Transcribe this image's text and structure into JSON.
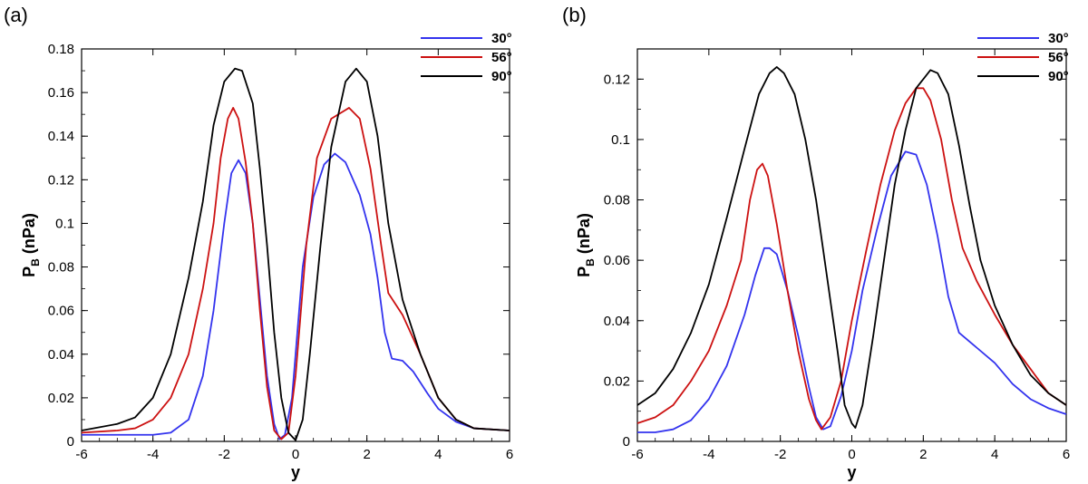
{
  "chart_data": [
    {
      "type": "line",
      "panel_label": "(a)",
      "xlabel": "y",
      "ylabel_main": "P",
      "ylabel_sub": "B",
      "ylabel_unit": " (nPa)",
      "xlim": [
        -6,
        6
      ],
      "ylim": [
        0,
        0.18
      ],
      "xticks": [
        -6,
        -4,
        -2,
        0,
        2,
        4,
        6
      ],
      "yticks": [
        0,
        0.02,
        0.04,
        0.06,
        0.08,
        0.1,
        0.12,
        0.14,
        0.16,
        0.18
      ],
      "ytick_labels": [
        "0",
        "0.02",
        "0.04",
        "0.06",
        "0.08",
        "0.1",
        "0.12",
        "0.14",
        "0.16",
        "0.18"
      ],
      "legend_position": "top-right",
      "series": [
        {
          "name": "30°",
          "color": "#3333ee",
          "points": [
            [
              -6,
              0.003
            ],
            [
              -5,
              0.003
            ],
            [
              -4,
              0.003
            ],
            [
              -3.5,
              0.004
            ],
            [
              -3,
              0.01
            ],
            [
              -2.6,
              0.03
            ],
            [
              -2.3,
              0.06
            ],
            [
              -2,
              0.1
            ],
            [
              -1.8,
              0.123
            ],
            [
              -1.6,
              0.129
            ],
            [
              -1.4,
              0.123
            ],
            [
              -1.2,
              0.1
            ],
            [
              -1,
              0.065
            ],
            [
              -0.8,
              0.03
            ],
            [
              -0.6,
              0.008
            ],
            [
              -0.45,
              0.001
            ],
            [
              -0.3,
              0.003
            ],
            [
              -0.1,
              0.02
            ],
            [
              0,
              0.04
            ],
            [
              0.2,
              0.08
            ],
            [
              0.5,
              0.112
            ],
            [
              0.8,
              0.127
            ],
            [
              1.1,
              0.132
            ],
            [
              1.4,
              0.128
            ],
            [
              1.8,
              0.113
            ],
            [
              2.1,
              0.095
            ],
            [
              2.3,
              0.075
            ],
            [
              2.5,
              0.05
            ],
            [
              2.7,
              0.038
            ],
            [
              3,
              0.037
            ],
            [
              3.3,
              0.032
            ],
            [
              3.7,
              0.022
            ],
            [
              4,
              0.015
            ],
            [
              4.5,
              0.009
            ],
            [
              5,
              0.006
            ],
            [
              6,
              0.005
            ]
          ]
        },
        {
          "name": "56°",
          "color": "#cc1111",
          "points": [
            [
              -6,
              0.004
            ],
            [
              -5,
              0.005
            ],
            [
              -4.5,
              0.006
            ],
            [
              -4,
              0.01
            ],
            [
              -3.5,
              0.02
            ],
            [
              -3,
              0.04
            ],
            [
              -2.6,
              0.07
            ],
            [
              -2.3,
              0.1
            ],
            [
              -2.1,
              0.13
            ],
            [
              -1.9,
              0.148
            ],
            [
              -1.75,
              0.153
            ],
            [
              -1.6,
              0.148
            ],
            [
              -1.4,
              0.128
            ],
            [
              -1.2,
              0.1
            ],
            [
              -1,
              0.06
            ],
            [
              -0.8,
              0.025
            ],
            [
              -0.6,
              0.005
            ],
            [
              -0.4,
              0.001
            ],
            [
              -0.2,
              0.004
            ],
            [
              0,
              0.03
            ],
            [
              0.3,
              0.09
            ],
            [
              0.6,
              0.13
            ],
            [
              1,
              0.148
            ],
            [
              1.5,
              0.153
            ],
            [
              1.8,
              0.148
            ],
            [
              2.1,
              0.125
            ],
            [
              2.4,
              0.09
            ],
            [
              2.6,
              0.068
            ],
            [
              3,
              0.058
            ],
            [
              3.5,
              0.04
            ],
            [
              4,
              0.02
            ],
            [
              4.5,
              0.01
            ],
            [
              5,
              0.006
            ],
            [
              6,
              0.005
            ]
          ]
        },
        {
          "name": "90°",
          "color": "#000000",
          "points": [
            [
              -6,
              0.005
            ],
            [
              -5,
              0.008
            ],
            [
              -4.5,
              0.011
            ],
            [
              -4,
              0.02
            ],
            [
              -3.5,
              0.04
            ],
            [
              -3,
              0.075
            ],
            [
              -2.6,
              0.11
            ],
            [
              -2.3,
              0.145
            ],
            [
              -2,
              0.165
            ],
            [
              -1.7,
              0.171
            ],
            [
              -1.5,
              0.17
            ],
            [
              -1.2,
              0.155
            ],
            [
              -1,
              0.125
            ],
            [
              -0.8,
              0.09
            ],
            [
              -0.6,
              0.05
            ],
            [
              -0.4,
              0.02
            ],
            [
              -0.2,
              0.004
            ],
            [
              0,
              0.0005
            ],
            [
              0.2,
              0.01
            ],
            [
              0.4,
              0.04
            ],
            [
              0.7,
              0.09
            ],
            [
              1,
              0.135
            ],
            [
              1.4,
              0.165
            ],
            [
              1.7,
              0.171
            ],
            [
              2,
              0.165
            ],
            [
              2.3,
              0.14
            ],
            [
              2.6,
              0.1
            ],
            [
              3,
              0.065
            ],
            [
              3.5,
              0.04
            ],
            [
              4,
              0.02
            ],
            [
              4.5,
              0.01
            ],
            [
              5,
              0.006
            ],
            [
              6,
              0.005
            ]
          ]
        }
      ]
    },
    {
      "type": "line",
      "panel_label": "(b)",
      "xlabel": "y",
      "ylabel_main": "P",
      "ylabel_sub": "B",
      "ylabel_unit": " (nPa)",
      "xlim": [
        -6,
        6
      ],
      "ylim": [
        0,
        0.13
      ],
      "xticks": [
        -6,
        -4,
        -2,
        0,
        2,
        4,
        6
      ],
      "yticks": [
        0,
        0.02,
        0.04,
        0.06,
        0.08,
        0.1,
        0.12
      ],
      "ytick_labels": [
        "0",
        "0.02",
        "0.04",
        "0.06",
        "0.08",
        "0.1",
        "0.12"
      ],
      "legend_position": "top-right",
      "series": [
        {
          "name": "30°",
          "color": "#3333ee",
          "points": [
            [
              -6,
              0.003
            ],
            [
              -5.5,
              0.003
            ],
            [
              -5,
              0.004
            ],
            [
              -4.5,
              0.007
            ],
            [
              -4,
              0.014
            ],
            [
              -3.5,
              0.025
            ],
            [
              -3,
              0.042
            ],
            [
              -2.7,
              0.055
            ],
            [
              -2.45,
              0.064
            ],
            [
              -2.3,
              0.064
            ],
            [
              -2.1,
              0.062
            ],
            [
              -1.8,
              0.05
            ],
            [
              -1.5,
              0.035
            ],
            [
              -1.2,
              0.018
            ],
            [
              -1,
              0.008
            ],
            [
              -0.8,
              0.004
            ],
            [
              -0.6,
              0.005
            ],
            [
              -0.3,
              0.015
            ],
            [
              0,
              0.03
            ],
            [
              0.3,
              0.05
            ],
            [
              0.7,
              0.07
            ],
            [
              1.1,
              0.088
            ],
            [
              1.5,
              0.096
            ],
            [
              1.8,
              0.095
            ],
            [
              2.1,
              0.085
            ],
            [
              2.4,
              0.068
            ],
            [
              2.7,
              0.048
            ],
            [
              3,
              0.036
            ],
            [
              3.5,
              0.031
            ],
            [
              4,
              0.026
            ],
            [
              4.5,
              0.019
            ],
            [
              5,
              0.014
            ],
            [
              5.5,
              0.011
            ],
            [
              6,
              0.009
            ]
          ]
        },
        {
          "name": "56°",
          "color": "#cc1111",
          "points": [
            [
              -6,
              0.006
            ],
            [
              -5.5,
              0.008
            ],
            [
              -5,
              0.012
            ],
            [
              -4.5,
              0.02
            ],
            [
              -4,
              0.03
            ],
            [
              -3.5,
              0.045
            ],
            [
              -3.1,
              0.06
            ],
            [
              -2.85,
              0.08
            ],
            [
              -2.65,
              0.09
            ],
            [
              -2.5,
              0.092
            ],
            [
              -2.35,
              0.088
            ],
            [
              -2.1,
              0.072
            ],
            [
              -1.8,
              0.05
            ],
            [
              -1.5,
              0.03
            ],
            [
              -1.2,
              0.014
            ],
            [
              -1,
              0.007
            ],
            [
              -0.85,
              0.004
            ],
            [
              -0.6,
              0.008
            ],
            [
              -0.3,
              0.02
            ],
            [
              0,
              0.04
            ],
            [
              0.4,
              0.063
            ],
            [
              0.8,
              0.085
            ],
            [
              1.2,
              0.103
            ],
            [
              1.5,
              0.112
            ],
            [
              1.8,
              0.117
            ],
            [
              2,
              0.117
            ],
            [
              2.2,
              0.113
            ],
            [
              2.5,
              0.1
            ],
            [
              2.8,
              0.08
            ],
            [
              3.1,
              0.064
            ],
            [
              3.5,
              0.053
            ],
            [
              4,
              0.042
            ],
            [
              4.5,
              0.032
            ],
            [
              5,
              0.024
            ],
            [
              5.5,
              0.016
            ],
            [
              6,
              0.012
            ]
          ]
        },
        {
          "name": "90°",
          "color": "#000000",
          "points": [
            [
              -6,
              0.012
            ],
            [
              -5.5,
              0.016
            ],
            [
              -5,
              0.024
            ],
            [
              -4.5,
              0.036
            ],
            [
              -4,
              0.052
            ],
            [
              -3.5,
              0.074
            ],
            [
              -3,
              0.097
            ],
            [
              -2.6,
              0.115
            ],
            [
              -2.3,
              0.122
            ],
            [
              -2.1,
              0.124
            ],
            [
              -1.9,
              0.122
            ],
            [
              -1.6,
              0.115
            ],
            [
              -1.3,
              0.1
            ],
            [
              -1,
              0.08
            ],
            [
              -0.7,
              0.055
            ],
            [
              -0.4,
              0.03
            ],
            [
              -0.2,
              0.012
            ],
            [
              0,
              0.006
            ],
            [
              0.1,
              0.0045
            ],
            [
              0.3,
              0.012
            ],
            [
              0.6,
              0.035
            ],
            [
              0.9,
              0.06
            ],
            [
              1.2,
              0.085
            ],
            [
              1.5,
              0.103
            ],
            [
              1.8,
              0.117
            ],
            [
              2.2,
              0.123
            ],
            [
              2.4,
              0.122
            ],
            [
              2.7,
              0.115
            ],
            [
              3,
              0.098
            ],
            [
              3.3,
              0.078
            ],
            [
              3.6,
              0.06
            ],
            [
              4,
              0.045
            ],
            [
              4.5,
              0.032
            ],
            [
              5,
              0.022
            ],
            [
              5.5,
              0.016
            ],
            [
              6,
              0.012
            ]
          ]
        }
      ]
    }
  ]
}
